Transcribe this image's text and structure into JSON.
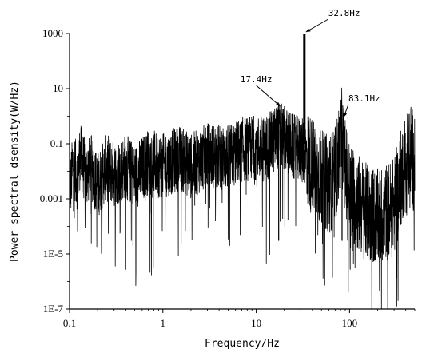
{
  "chart_data": {
    "type": "line",
    "title": "",
    "xlabel": "Frequency/Hz",
    "ylabel": "Power spectral dsensity(W/Hz)",
    "x_scale": "log",
    "y_scale": "log",
    "xlim": [
      0.1,
      500
    ],
    "ylim": [
      1e-07,
      1000
    ],
    "x_ticks": [
      {
        "value": 0.1,
        "label": "0.1"
      },
      {
        "value": 1,
        "label": "1"
      },
      {
        "value": 10,
        "label": "10"
      },
      {
        "value": 100,
        "label": "100"
      }
    ],
    "y_ticks": [
      {
        "value": 1e-07,
        "label": "1E-7"
      },
      {
        "value": 1e-05,
        "label": "1E-5"
      },
      {
        "value": 0.001,
        "label": "0.001"
      },
      {
        "value": 0.1,
        "label": "0.1"
      },
      {
        "value": 10,
        "label": "10"
      },
      {
        "value": 1000,
        "label": "1000"
      }
    ],
    "grid": false,
    "series": [
      {
        "color": "#000000",
        "points": [
          [
            0.1,
            0.002
          ],
          [
            0.11,
            0.03
          ],
          [
            0.12,
            0.008
          ],
          [
            0.13,
            0.05
          ],
          [
            0.15,
            0.01
          ],
          [
            0.17,
            0.02
          ],
          [
            0.2,
            0.004
          ],
          [
            0.25,
            0.02
          ],
          [
            0.3,
            0.01
          ],
          [
            0.4,
            0.02
          ],
          [
            0.5,
            0.008
          ],
          [
            0.7,
            0.03
          ],
          [
            1,
            0.02
          ],
          [
            1.5,
            0.04
          ],
          [
            2,
            0.02
          ],
          [
            3,
            0.05
          ],
          [
            5,
            0.04
          ],
          [
            7,
            0.08
          ],
          [
            10,
            0.1
          ],
          [
            12,
            0.08
          ],
          [
            15,
            0.15
          ],
          [
            17.4,
            0.3
          ],
          [
            20,
            0.2
          ],
          [
            25,
            0.1
          ],
          [
            30,
            0.08
          ],
          [
            32.8,
            1000
          ],
          [
            35,
            0.05
          ],
          [
            40,
            0.02
          ],
          [
            50,
            0.008
          ],
          [
            60,
            0.005
          ],
          [
            70,
            0.01
          ],
          [
            83.1,
            0.3
          ],
          [
            90,
            0.02
          ],
          [
            100,
            0.003
          ],
          [
            150,
            0.0005
          ],
          [
            200,
            0.0003
          ],
          [
            300,
            0.0008
          ],
          [
            400,
            0.04
          ],
          [
            450,
            0.1
          ],
          [
            500,
            0.02
          ]
        ]
      }
    ],
    "annotations": [
      {
        "label": "32.8Hz",
        "x": 32.8,
        "y": 1000
      },
      {
        "label": "17.4Hz",
        "x": 17.4,
        "y": 2
      },
      {
        "label": "83.1Hz",
        "x": 83.1,
        "y": 0.8
      }
    ]
  }
}
